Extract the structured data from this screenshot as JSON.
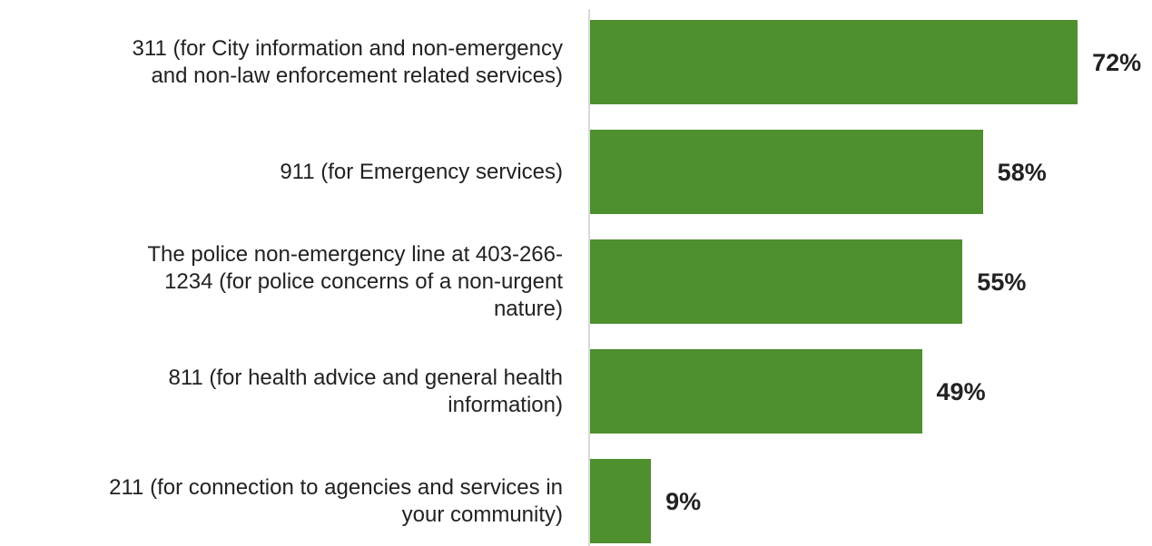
{
  "chart_data": {
    "type": "bar",
    "orientation": "horizontal",
    "title": "",
    "xlabel": "",
    "ylabel": "",
    "grid": false,
    "legend": "none",
    "xlim": [
      0,
      100
    ],
    "bar_color": "#4e8f2e",
    "value_suffix": "%",
    "categories": [
      "311 (for City information and non-emergency and non-law enforcement related services)",
      "911 (for Emergency services)",
      "The police non-emergency line at 403-266-1234 (for police concerns of a non-urgent nature)",
      "811 (for health advice and general health information)",
      "211 (for connection to agencies and services in your community)"
    ],
    "label_lines": [
      [
        "311 (for City information and non-emergency",
        "and non-law enforcement related services)"
      ],
      [
        "911 (for Emergency services)"
      ],
      [
        "The police non-emergency line at 403-266-",
        "1234 (for police concerns of a non-urgent",
        "nature)"
      ],
      [
        "811 (for health advice and general health",
        "information)"
      ],
      [
        "211 (for connection to agencies and services in",
        "your community)"
      ]
    ],
    "values": [
      72,
      58,
      55,
      49,
      9
    ],
    "value_labels": [
      "72%",
      "58%",
      "55%",
      "49%",
      "9%"
    ]
  }
}
